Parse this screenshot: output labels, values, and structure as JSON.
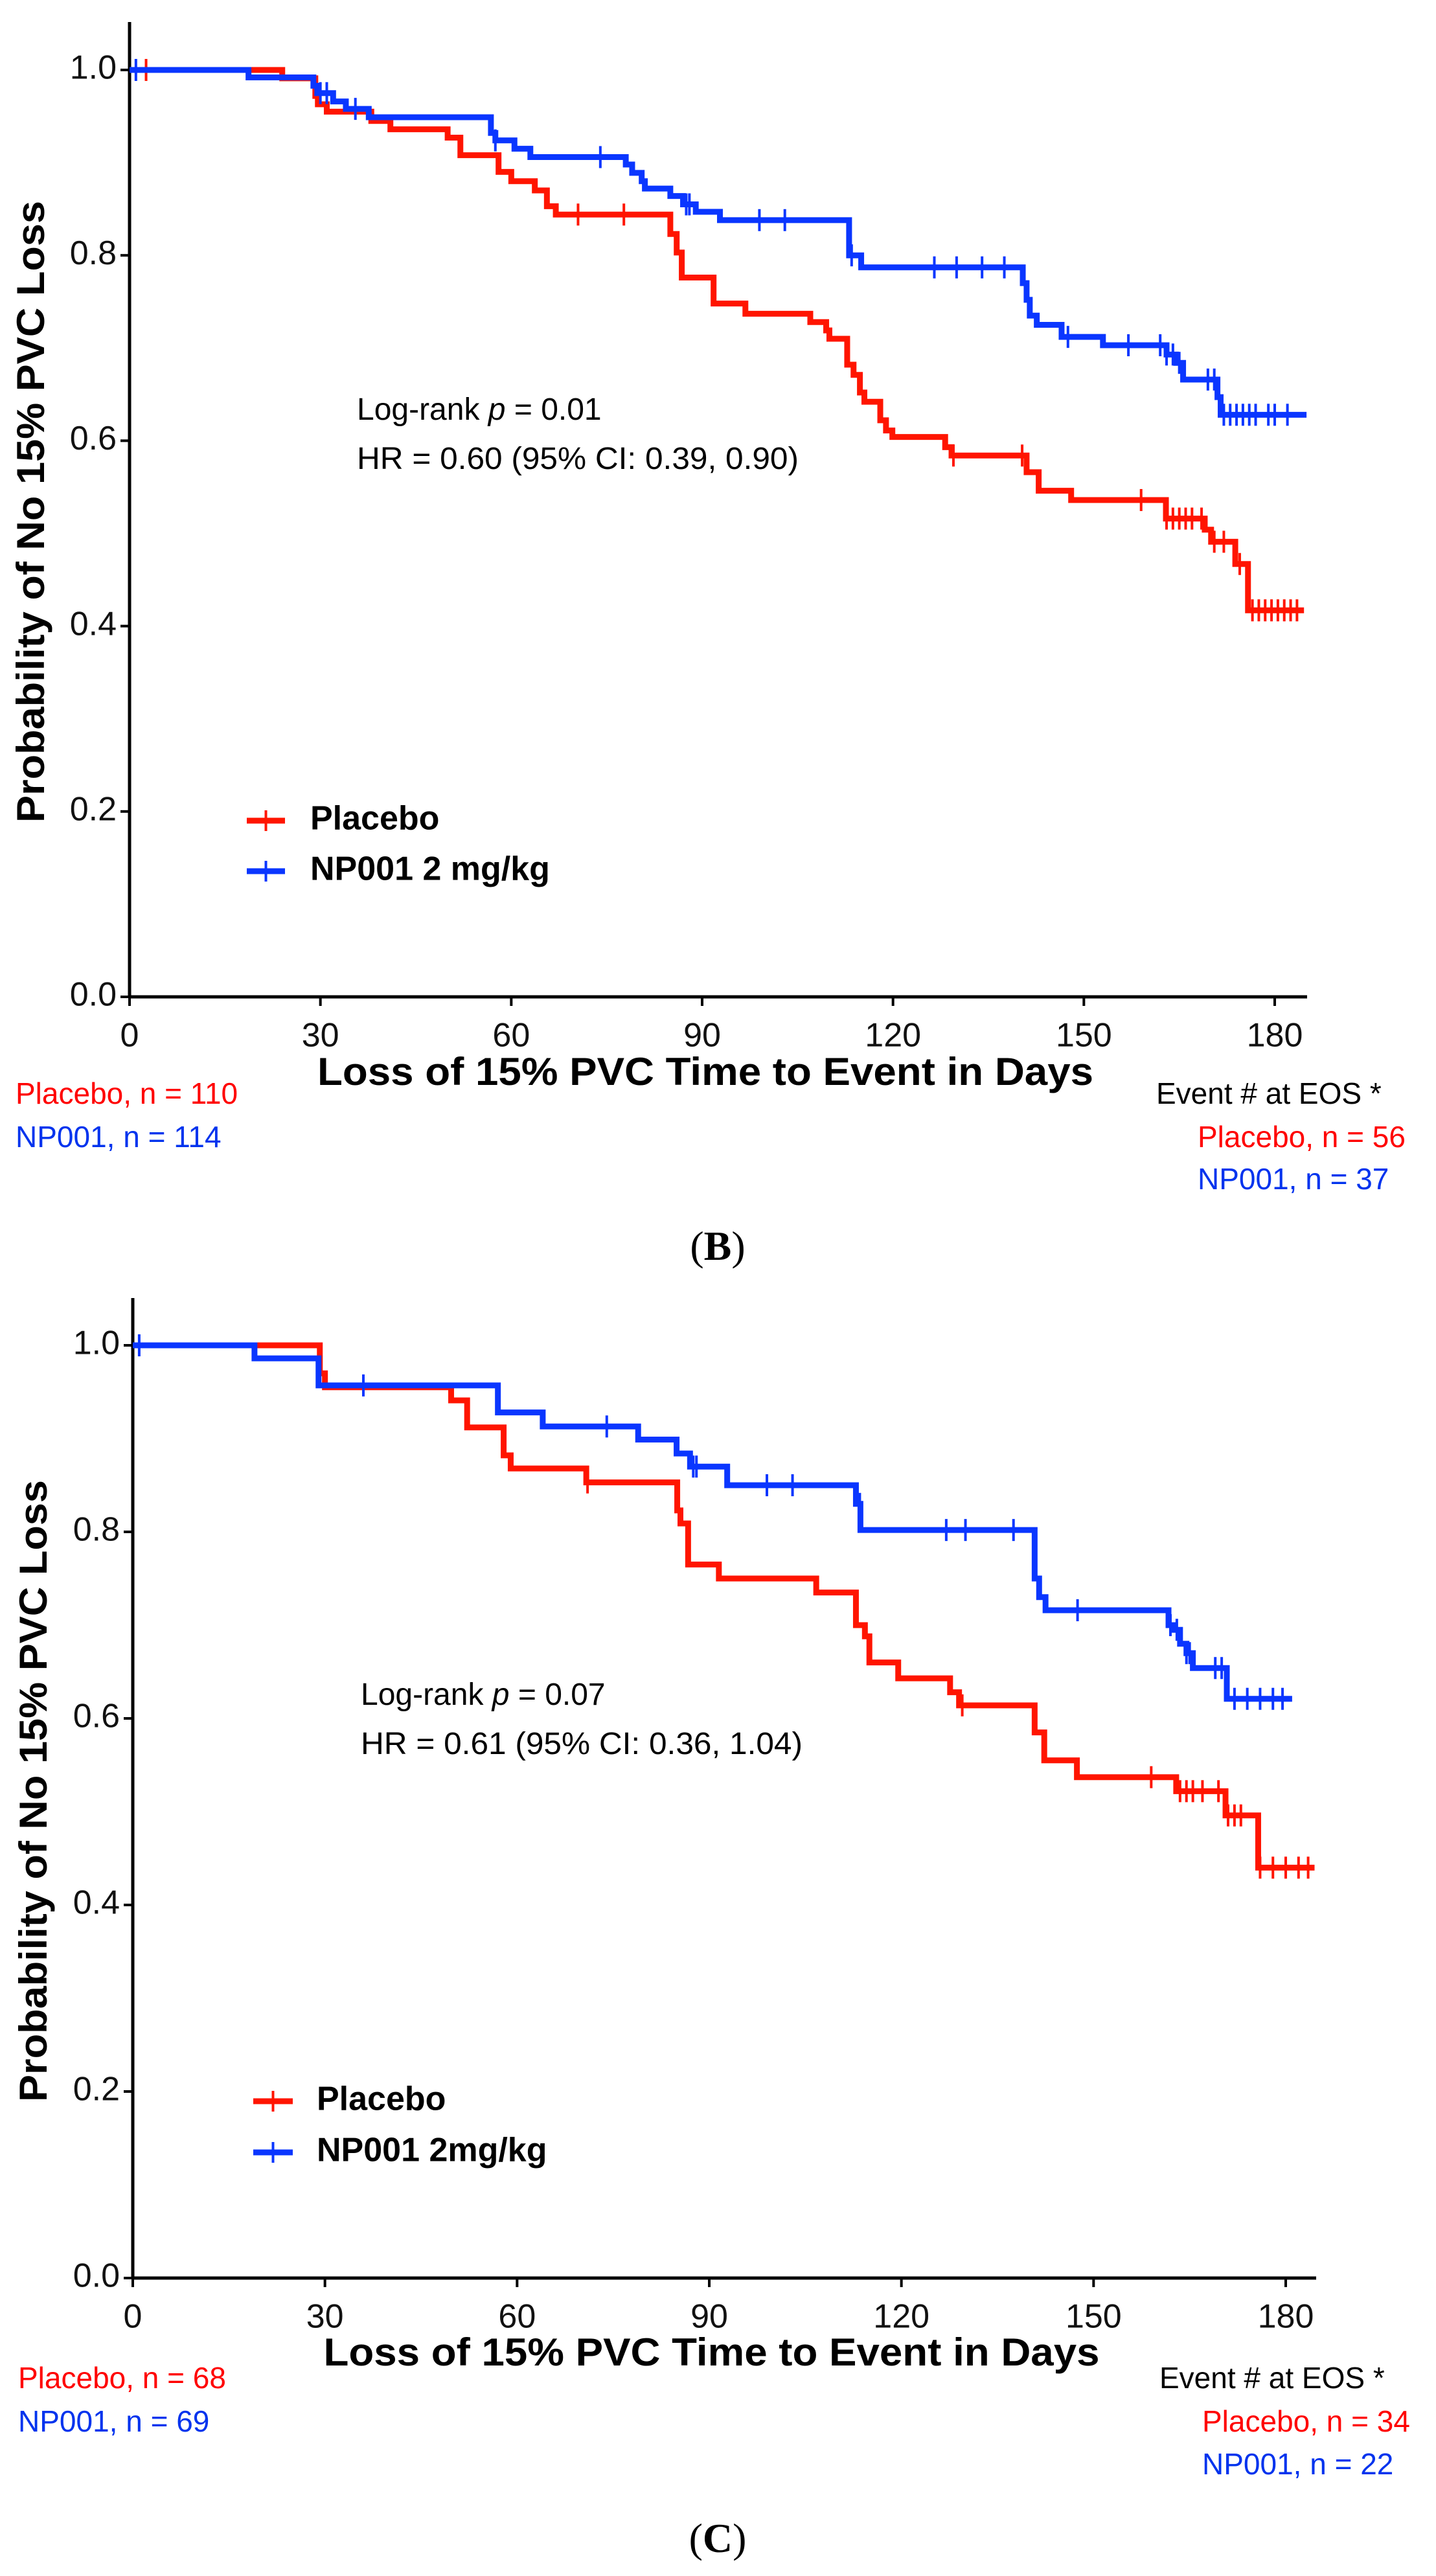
{
  "colors": {
    "placebo": "#ff1500",
    "np001": "#0a36ff",
    "note_red": "#ff0000",
    "note_blue": "#0033ee",
    "axis": "#000000"
  },
  "chart_data": [
    {
      "panel_label": "B",
      "type": "line",
      "subtype": "kaplan-meier",
      "xlabel": "Loss of 15% PVC Time to Event in Days",
      "ylabel": "Probability of No 15% PVC Loss",
      "xlim": [
        0,
        185
      ],
      "ylim": [
        0,
        1.05
      ],
      "x_ticks": [
        0,
        30,
        60,
        90,
        120,
        150,
        180
      ],
      "y_ticks": [
        "0.0",
        "0.2",
        "0.4",
        "0.6",
        "0.8",
        "1.0"
      ],
      "grid": false,
      "legend_position": "bottom-left",
      "annotation": {
        "prefix": "Log-rank ",
        "p_symbol": "p",
        "p_value": " = 0.01",
        "hr": "HR = 0.60 (95% CI: 0.39, 0.90)"
      },
      "series": [
        {
          "name": "Placebo",
          "color_key": "placebo",
          "end": 184.6,
          "steps": [
            [
              0,
              1
            ],
            [
              24,
              0.991
            ],
            [
              29.2,
              0.972
            ],
            [
              29.6,
              0.963
            ],
            [
              31,
              0.955
            ],
            [
              38,
              0.945
            ],
            [
              41,
              0.936
            ],
            [
              50,
              0.927
            ],
            [
              52,
              0.908
            ],
            [
              58,
              0.89
            ],
            [
              60,
              0.88
            ],
            [
              63.7,
              0.87
            ],
            [
              65.6,
              0.853
            ],
            [
              67,
              0.844
            ],
            [
              85,
              0.823
            ],
            [
              86,
              0.803
            ],
            [
              86.8,
              0.776
            ],
            [
              91.8,
              0.748
            ],
            [
              96.8,
              0.737
            ],
            [
              107,
              0.728
            ],
            [
              109.5,
              0.719
            ],
            [
              110,
              0.71
            ],
            [
              112.8,
              0.682
            ],
            [
              113.8,
              0.671
            ],
            [
              114.8,
              0.652
            ],
            [
              115.5,
              0.642
            ],
            [
              118,
              0.622
            ],
            [
              118.9,
              0.611
            ],
            [
              119.9,
              0.604
            ],
            [
              128.2,
              0.593
            ],
            [
              129.2,
              0.584
            ],
            [
              141,
              0.566
            ],
            [
              142.9,
              0.546
            ],
            [
              148,
              0.536
            ],
            [
              162.9,
              0.516
            ],
            [
              169,
              0.504
            ],
            [
              170,
              0.491
            ],
            [
              173.8,
              0.467
            ],
            [
              175.8,
              0.417
            ]
          ],
          "censored": [
            2.6,
            70.5,
            77.7,
            129.5,
            140.3,
            159,
            163,
            164,
            165,
            166,
            167,
            168.5,
            170.5,
            172,
            174.5,
            176.5,
            177.5,
            178.5,
            179.5,
            180.5,
            181.5,
            182.5,
            183.5
          ]
        },
        {
          "name": "NP001 2 mg/kg",
          "color_key": "np001",
          "end": 185,
          "steps": [
            [
              0,
              1
            ],
            [
              18.7,
              0.992
            ],
            [
              28.9,
              0.983
            ],
            [
              29.5,
              0.975
            ],
            [
              32,
              0.966
            ],
            [
              34,
              0.958
            ],
            [
              37.6,
              0.949
            ],
            [
              56.8,
              0.932
            ],
            [
              57.5,
              0.924
            ],
            [
              60.5,
              0.915
            ],
            [
              63,
              0.906
            ],
            [
              78,
              0.898
            ],
            [
              79,
              0.889
            ],
            [
              80.5,
              0.88
            ],
            [
              81,
              0.872
            ],
            [
              85,
              0.864
            ],
            [
              87,
              0.855
            ],
            [
              89,
              0.847
            ],
            [
              92.8,
              0.838
            ],
            [
              113.1,
              0.8
            ],
            [
              115,
              0.787
            ],
            [
              140.4,
              0.77
            ],
            [
              141,
              0.752
            ],
            [
              141.5,
              0.735
            ],
            [
              142.6,
              0.725
            ],
            [
              146.5,
              0.712
            ],
            [
              153,
              0.703
            ],
            [
              163,
              0.693
            ],
            [
              164.5,
              0.684
            ],
            [
              165.6,
              0.666
            ],
            [
              171,
              0.647
            ],
            [
              171.5,
              0.628
            ]
          ],
          "censored": [
            1,
            30,
            31,
            35.5,
            57.5,
            74,
            87.5,
            88,
            99,
            103,
            113.5,
            126.5,
            130,
            134,
            137.5,
            147.5,
            157,
            162,
            163,
            164,
            165,
            169.5,
            170.5,
            172,
            173,
            174,
            175,
            176,
            177,
            179,
            180,
            182
          ]
        }
      ],
      "notes_left": [
        "Placebo, n = 110",
        "NP001, n = 114"
      ],
      "notes_right": {
        "title": "Event # at EOS *",
        "lines": [
          "Placebo, n = 56",
          "NP001, n = 37"
        ]
      }
    },
    {
      "panel_label": "C",
      "type": "line",
      "subtype": "kaplan-meier",
      "xlabel": "Loss of 15% PVC Time to Event in Days",
      "ylabel": "Probability of No 15% PVC Loss",
      "xlim": [
        0,
        185
      ],
      "ylim": [
        0,
        1.05
      ],
      "x_ticks": [
        0,
        30,
        60,
        90,
        120,
        150,
        180
      ],
      "y_ticks": [
        "0.0",
        "0.2",
        "0.4",
        "0.6",
        "0.8",
        "1.0"
      ],
      "grid": false,
      "legend_position": "bottom-left",
      "annotation": {
        "prefix": "Log-rank ",
        "p_symbol": "p",
        "p_value": " = 0.07",
        "hr": "HR = 0.61 (95% CI: 0.36, 1.04)"
      },
      "series": [
        {
          "name": "Placebo",
          "color_key": "placebo",
          "end": 184.5,
          "steps": [
            [
              0,
              1
            ],
            [
              29.2,
              0.97
            ],
            [
              30,
              0.955
            ],
            [
              49.7,
              0.941
            ],
            [
              52.2,
              0.912
            ],
            [
              57.9,
              0.882
            ],
            [
              59,
              0.868
            ],
            [
              70.8,
              0.853
            ],
            [
              85,
              0.823
            ],
            [
              85.5,
              0.809
            ],
            [
              86.7,
              0.765
            ],
            [
              91.5,
              0.75
            ],
            [
              106.7,
              0.735
            ],
            [
              112.9,
              0.7
            ],
            [
              114.3,
              0.688
            ],
            [
              115,
              0.66
            ],
            [
              119.5,
              0.643
            ],
            [
              127.6,
              0.628
            ],
            [
              129,
              0.614
            ],
            [
              140.8,
              0.585
            ],
            [
              142.3,
              0.555
            ],
            [
              147.4,
              0.537
            ],
            [
              162.9,
              0.522
            ],
            [
              170.6,
              0.496
            ],
            [
              175.7,
              0.44
            ]
          ],
          "censored": [
            71,
            129.5,
            159,
            163.5,
            164.5,
            165.5,
            167,
            169.5,
            171,
            172,
            173,
            176,
            178,
            180,
            182,
            183.5
          ]
        },
        {
          "name": "NP001 2mg/kg",
          "color_key": "np001",
          "end": 181,
          "steps": [
            [
              0,
              1
            ],
            [
              19,
              0.986
            ],
            [
              29,
              0.957
            ],
            [
              57,
              0.928
            ],
            [
              64,
              0.913
            ],
            [
              78.9,
              0.899
            ],
            [
              84.9,
              0.884
            ],
            [
              87,
              0.87
            ],
            [
              92.8,
              0.85
            ],
            [
              112.9,
              0.83
            ],
            [
              113.6,
              0.802
            ],
            [
              140.8,
              0.75
            ],
            [
              141.5,
              0.73
            ],
            [
              142.5,
              0.716
            ],
            [
              161.7,
              0.7
            ],
            [
              162.5,
              0.695
            ],
            [
              163.5,
              0.68
            ],
            [
              164.5,
              0.67
            ],
            [
              165.5,
              0.654
            ],
            [
              170.8,
              0.621
            ]
          ],
          "censored": [
            1,
            36,
            74,
            87.5,
            88,
            99,
            103,
            113.5,
            127,
            130,
            137.5,
            147.5,
            162,
            163,
            164.5,
            165,
            169,
            170,
            172,
            174,
            176,
            178,
            179.5
          ]
        }
      ],
      "notes_left": [
        "Placebo, n = 68",
        "NP001, n = 69"
      ],
      "notes_right": {
        "title": "Event # at EOS *",
        "lines": [
          "Placebo, n = 34",
          "NP001, n = 22"
        ]
      }
    }
  ]
}
